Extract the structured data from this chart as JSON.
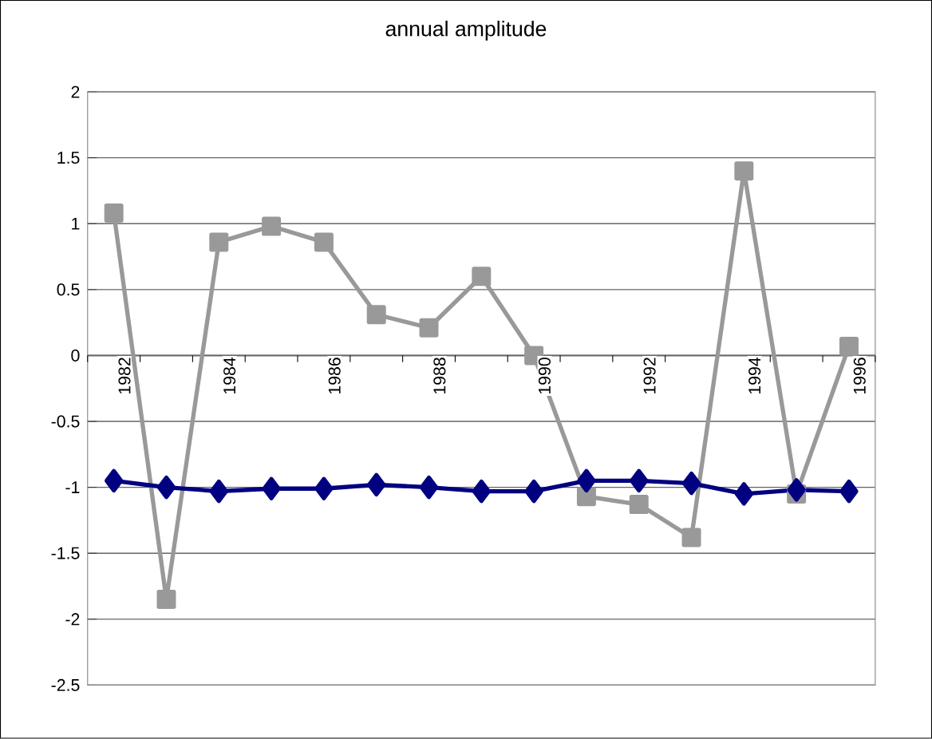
{
  "chart_data": {
    "type": "line",
    "title": "annual amplitude",
    "categories": [
      "1982",
      null,
      "1984",
      null,
      "1986",
      null,
      "1988",
      null,
      "1990",
      null,
      "1992",
      null,
      "1994",
      null,
      "1996"
    ],
    "series": [
      {
        "color": "#999999",
        "marker": "square",
        "values": [
          1.08,
          -1.85,
          0.86,
          0.98,
          0.86,
          0.31,
          0.21,
          0.6,
          0.0,
          -1.07,
          -1.13,
          -1.38,
          1.4,
          -1.05,
          0.07
        ]
      },
      {
        "color": "#000080",
        "marker": "diamond",
        "values": [
          -0.95,
          -1.0,
          -1.03,
          -1.01,
          -1.01,
          -0.98,
          -1.0,
          -1.03,
          -1.03,
          -0.95,
          -0.95,
          -0.97,
          -1.05,
          -1.02,
          -1.03
        ]
      }
    ],
    "ylim": [
      -2.5,
      2
    ],
    "yticks": [
      -2.5,
      -2,
      -1.5,
      -1,
      -0.5,
      0,
      0.5,
      1,
      1.5,
      2
    ],
    "grid": "y"
  }
}
